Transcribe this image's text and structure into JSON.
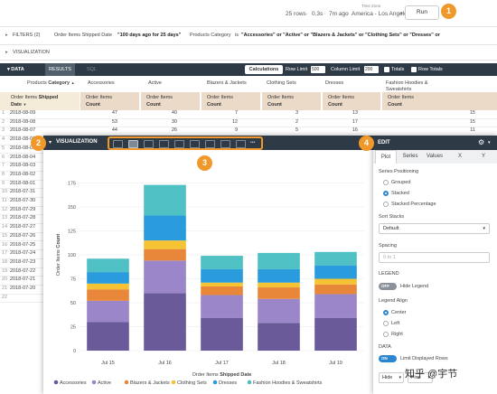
{
  "topbar": {
    "timezone_label": "Time Zone",
    "rows": "25 rows",
    "runtime": "0.3s",
    "ago": "7m ago",
    "timezone": "America - Los Angeles",
    "run_label": "Run",
    "sep": "·",
    "tz_caret": "▾"
  },
  "callouts": {
    "one": "1",
    "two": "2",
    "three": "3",
    "four": "4"
  },
  "filters": {
    "label": "FILTERS (2)",
    "f1_field": "Order Items Shipped Date",
    "f1_value": "\"100 days ago for 25 days\"",
    "f2_field": "Products Category",
    "f2_is": "is",
    "f2_value": "\"Accessories\" or \"Active\" or \"Blazers & Jackets\" or \"Clothing Sets\" or \"Dresses\" or",
    "caret": "▸"
  },
  "visualization_row": {
    "label": "VISUALIZATION",
    "caret": "▸"
  },
  "data_bar": {
    "label": "DATA",
    "results": "RESULTS",
    "sql": "SQL",
    "calculations": "Calculations",
    "row_limit_label": "Row Limit",
    "row_limit": "500",
    "col_limit_label": "Column Limit",
    "col_limit": "200",
    "totals": "Totals",
    "row_totals": "Row Totals",
    "caret": "▾"
  },
  "table": {
    "pivot_label": "Products",
    "pivot_field": "Category",
    "pivot_caret": "▲",
    "pivot_values": [
      "Accessories",
      "Active",
      "Blazers & Jackets",
      "Clothing Sets",
      "Dresses",
      "Fashion Hoodies &",
      "Sweatshirts"
    ],
    "dim_header_1": "Order Items",
    "dim_header_bold": "Shipped",
    "dim_header_2": "Date",
    "dim_sort": "▼",
    "measure_header_1": "Order Items",
    "measure_header_2": "Count",
    "rows": [
      {
        "n": "1",
        "date": "2018-08-09",
        "v": [
          "47",
          "40",
          "7",
          "3",
          "13",
          "15"
        ]
      },
      {
        "n": "2",
        "date": "2018-08-08",
        "v": [
          "53",
          "30",
          "12",
          "2",
          "17",
          "15"
        ]
      },
      {
        "n": "3",
        "date": "2018-08-07",
        "v": [
          "44",
          "26",
          "9",
          "5",
          "16",
          "11"
        ]
      },
      {
        "n": "4",
        "date": "2018-08-06",
        "v": [
          "",
          "",
          "",
          "",
          "",
          ""
        ]
      },
      {
        "n": "5",
        "date": "2018-08-05",
        "v": [
          "",
          "",
          "",
          "",
          "",
          ""
        ]
      },
      {
        "n": "6",
        "date": "2018-08-04",
        "v": [
          "",
          "",
          "",
          "",
          "",
          ""
        ]
      },
      {
        "n": "7",
        "date": "2018-08-03",
        "v": [
          "",
          "",
          "",
          "",
          "",
          ""
        ]
      },
      {
        "n": "8",
        "date": "2018-08-02",
        "v": [
          "",
          "",
          "",
          "",
          "",
          ""
        ]
      },
      {
        "n": "9",
        "date": "2018-08-01",
        "v": [
          "",
          "",
          "",
          "",
          "",
          ""
        ]
      },
      {
        "n": "10",
        "date": "2018-07-31",
        "v": [
          "",
          "",
          "",
          "",
          "",
          ""
        ]
      },
      {
        "n": "11",
        "date": "2018-07-30",
        "v": [
          "",
          "",
          "",
          "",
          "",
          ""
        ]
      },
      {
        "n": "12",
        "date": "2018-07-29",
        "v": [
          "",
          "",
          "",
          "",
          "",
          ""
        ]
      },
      {
        "n": "13",
        "date": "2018-07-28",
        "v": [
          "",
          "",
          "",
          "",
          "",
          ""
        ]
      },
      {
        "n": "14",
        "date": "2018-07-27",
        "v": [
          "",
          "",
          "",
          "",
          "",
          ""
        ]
      },
      {
        "n": "15",
        "date": "2018-07-26",
        "v": [
          "",
          "",
          "",
          "",
          "",
          ""
        ]
      },
      {
        "n": "16",
        "date": "2018-07-25",
        "v": [
          "",
          "",
          "",
          "",
          "",
          ""
        ]
      },
      {
        "n": "17",
        "date": "2018-07-24",
        "v": [
          "",
          "",
          "",
          "",
          "",
          ""
        ]
      },
      {
        "n": "18",
        "date": "2018-07-23",
        "v": [
          "",
          "",
          "",
          "",
          "",
          ""
        ]
      },
      {
        "n": "19",
        "date": "2018-07-22",
        "v": [
          "",
          "",
          "",
          "",
          "",
          ""
        ]
      },
      {
        "n": "20",
        "date": "2018-07-21",
        "v": [
          "",
          "",
          "",
          "",
          "",
          ""
        ]
      },
      {
        "n": "21",
        "date": "2018-07-20",
        "v": [
          "",
          "",
          "",
          "",
          "",
          ""
        ]
      },
      {
        "n": "22",
        "date": "",
        "v": [
          "",
          "",
          "",
          "",
          "",
          ""
        ]
      }
    ]
  },
  "viz_panel": {
    "title": "VISUALIZATION",
    "caret": "▾",
    "more_icon_glyph": "•••",
    "chart_types": [
      "table",
      "column",
      "bar",
      "scatter",
      "line",
      "area",
      "pie",
      "map",
      "single-value"
    ],
    "active_chart_type": "column"
  },
  "chart_data": {
    "type": "bar",
    "stacked": true,
    "categories": [
      "Jul 15",
      "Jul 16",
      "Jul 17",
      "Jul 18",
      "Jul 19"
    ],
    "xlabel_prefix": "Order Items",
    "xlabel_bold": "Shipped Date",
    "ylabel_prefix": "Order Items",
    "ylabel_bold": "Count",
    "ylim": [
      0,
      200
    ],
    "yticks": [
      0,
      25,
      50,
      75,
      100,
      125,
      150,
      175
    ],
    "series": [
      {
        "name": "Accessories",
        "color": "#6a5a9a",
        "values": [
          30,
          60,
          34,
          29,
          34
        ]
      },
      {
        "name": "Active",
        "color": "#9a86c8",
        "values": [
          22,
          34,
          24,
          25,
          25
        ]
      },
      {
        "name": "Blazers & Jackets",
        "color": "#e8873a",
        "values": [
          12,
          12,
          9,
          12,
          10
        ]
      },
      {
        "name": "Clothing Sets",
        "color": "#f5c333",
        "values": [
          6,
          9,
          4,
          5,
          6
        ]
      },
      {
        "name": "Dresses",
        "color": "#2a9bdc",
        "values": [
          12,
          26,
          14,
          14,
          14
        ]
      },
      {
        "name": "Fashion Hoodies & Sweatshirts",
        "color": "#4fc1c4",
        "values": [
          14,
          32,
          14,
          17,
          14
        ]
      }
    ],
    "legend_position": "bottom"
  },
  "edit_panel": {
    "title": "EDIT",
    "tabs": [
      "Plot",
      "Series",
      "Values",
      "X",
      "Y"
    ],
    "active_tab": "Plot",
    "series_positioning": "Series Positioning",
    "positioning_options": [
      "Grouped",
      "Stacked",
      "Stacked Percentage"
    ],
    "positioning_selected": "Stacked",
    "sort_stacks": "Sort Stacks",
    "sort_value": "Default",
    "spacing": "Spacing",
    "spacing_placeholder": "0 to 1",
    "legend_section": "LEGEND",
    "hide_legend_toggle": "OFF",
    "hide_legend": "Hide Legend",
    "legend_align": "Legend Align",
    "align_options": [
      "Center",
      "Left",
      "Right"
    ],
    "align_selected": "Center",
    "data_section": "DATA",
    "limit_toggle": "ON",
    "limit_rows": "Limit Displayed Rows",
    "hide_value": "Hide",
    "first_value": "First",
    "gear_icon_glyph": "⚙",
    "select_caret": "▾"
  },
  "watermark": "知乎 @宇节"
}
